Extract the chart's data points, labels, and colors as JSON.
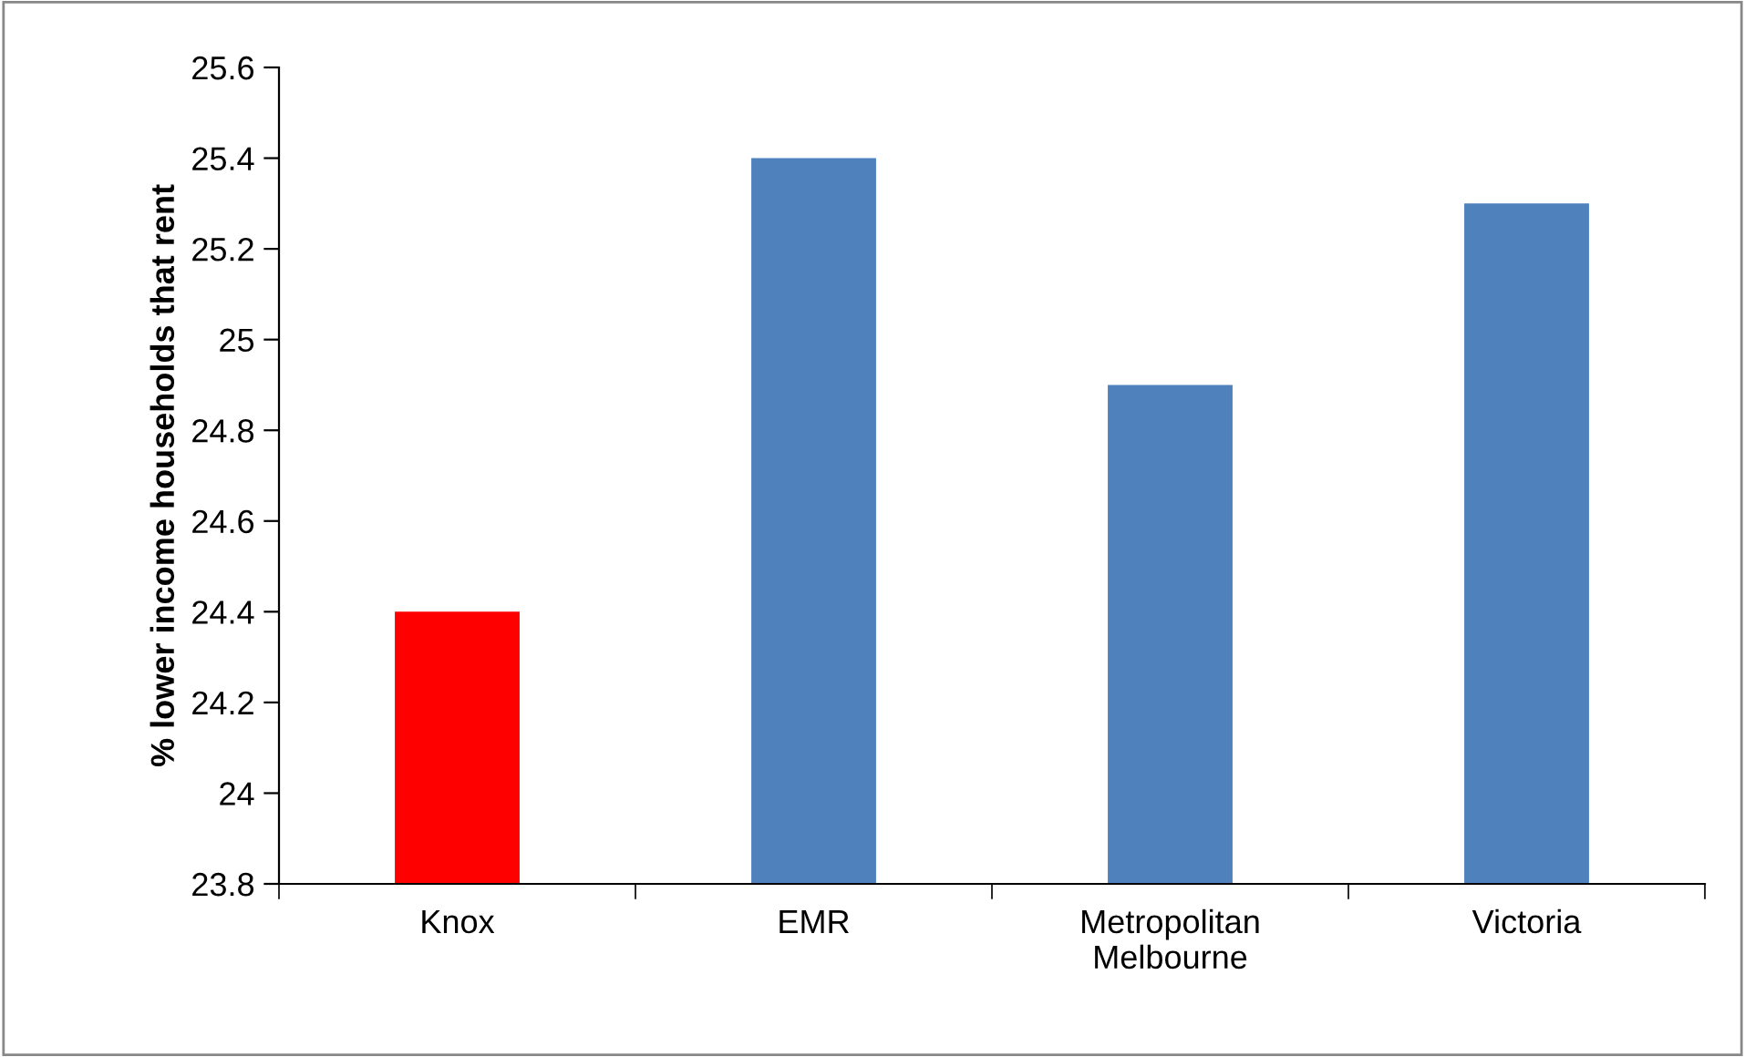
{
  "chart_data": {
    "type": "bar",
    "ylabel": "% lower income households that rent",
    "categories": [
      "Knox",
      "EMR",
      "Metropolitan\nMelbourne",
      "Victoria"
    ],
    "values": [
      24.4,
      25.4,
      24.9,
      25.3
    ],
    "colors": [
      "#ff0000",
      "#4f81bd",
      "#4f81bd",
      "#4f81bd"
    ],
    "ylim": [
      23.8,
      25.6
    ],
    "yticks": [
      {
        "value": 23.8,
        "label": "23.8"
      },
      {
        "value": 24,
        "label": "24"
      },
      {
        "value": 24.2,
        "label": "24.2"
      },
      {
        "value": 24.4,
        "label": "24.4"
      },
      {
        "value": 24.6,
        "label": "24.6"
      },
      {
        "value": 24.8,
        "label": "24.8"
      },
      {
        "value": 25,
        "label": "25"
      },
      {
        "value": 25.2,
        "label": "25.2"
      },
      {
        "value": 25.4,
        "label": "25.4"
      },
      {
        "value": 25.6,
        "label": "25.6"
      }
    ],
    "grid": false
  }
}
